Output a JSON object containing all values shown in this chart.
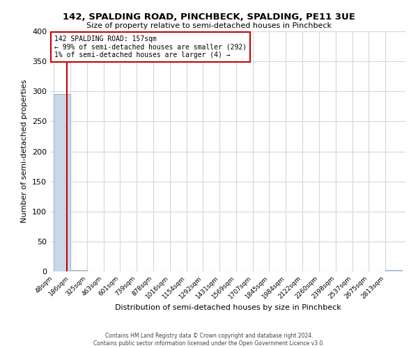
{
  "title": "142, SPALDING ROAD, PINCHBECK, SPALDING, PE11 3UE",
  "subtitle": "Size of property relative to semi-detached houses in Pinchbeck",
  "xlabel": "Distribution of semi-detached houses by size in Pinchbeck",
  "ylabel": "Number of semi-detached properties",
  "bar_edges": [
    48,
    186,
    325,
    463,
    601,
    739,
    878,
    1016,
    1154,
    1292,
    1431,
    1569,
    1707,
    1845,
    1984,
    2122,
    2260,
    2398,
    2537,
    2675,
    2813
  ],
  "bar_labels": [
    "48sqm",
    "186sqm",
    "325sqm",
    "463sqm",
    "601sqm",
    "739sqm",
    "878sqm",
    "1016sqm",
    "1154sqm",
    "1292sqm",
    "1431sqm",
    "1569sqm",
    "1707sqm",
    "1845sqm",
    "1984sqm",
    "2122sqm",
    "2260sqm",
    "2398sqm",
    "2537sqm",
    "2675sqm",
    "2813sqm"
  ],
  "bar_heights": [
    296,
    2,
    0,
    0,
    0,
    0,
    0,
    0,
    0,
    0,
    0,
    0,
    0,
    0,
    0,
    0,
    0,
    0,
    0,
    0,
    2
  ],
  "bar_color": "#c8d8e8",
  "bar_edge_color": "#a0b8cc",
  "property_line_x": 157,
  "property_line_color": "#cc0000",
  "annotation_line1": "142 SPALDING ROAD: 157sqm",
  "annotation_line2": "← 99% of semi-detached houses are smaller (292)",
  "annotation_line3": "1% of semi-detached houses are larger (4) →",
  "annotation_box_color": "#ffffff",
  "annotation_box_edge": "#cc0000",
  "ylim": [
    0,
    400
  ],
  "yticks": [
    0,
    50,
    100,
    150,
    200,
    250,
    300,
    350,
    400
  ],
  "grid_color": "#d0d8e0",
  "background_color": "#ffffff",
  "footer_line1": "Contains HM Land Registry data © Crown copyright and database right 2024.",
  "footer_line2": "Contains public sector information licensed under the Open Government Licence v3.0."
}
